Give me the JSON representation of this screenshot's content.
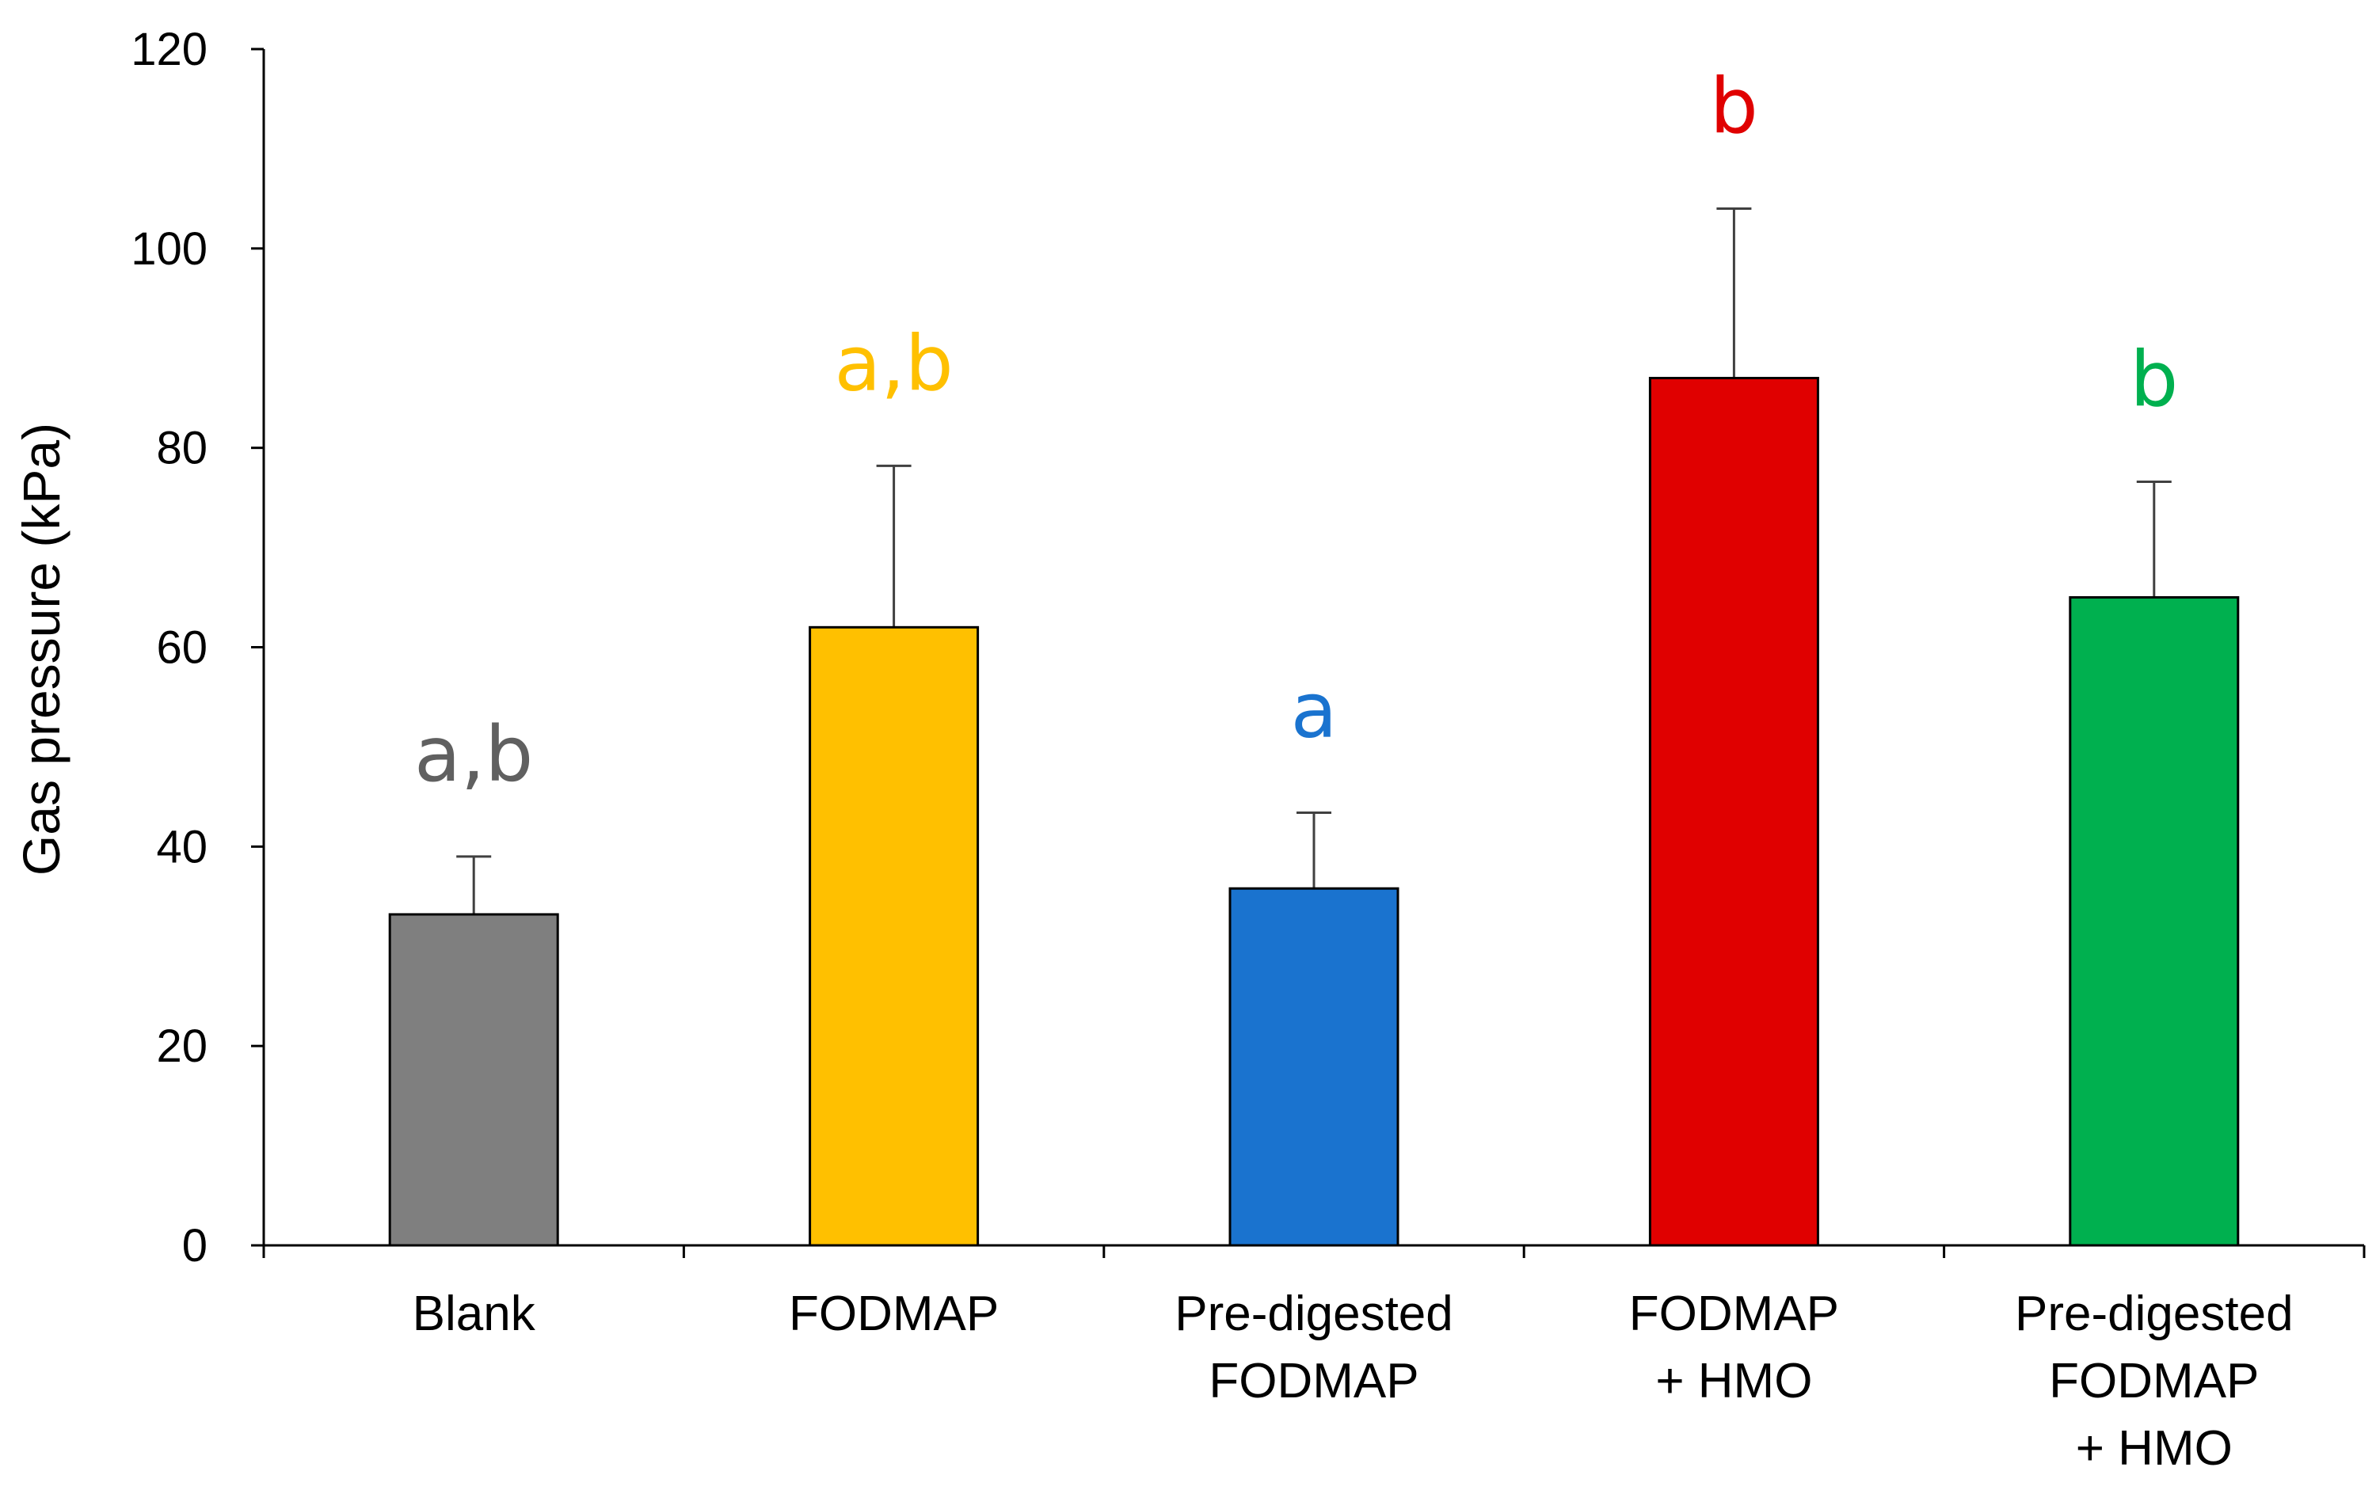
{
  "chart_data": {
    "type": "bar",
    "title": "",
    "xlabel": "",
    "ylabel": "Gas pressure (kPa)",
    "ylim": [
      0,
      120
    ],
    "yticks": [
      "0",
      "20",
      "40",
      "60",
      "80",
      "100",
      "120"
    ],
    "ytick_values": [
      0,
      20,
      40,
      60,
      80,
      100,
      120
    ],
    "grid": false,
    "legend": "none",
    "categories": [
      [
        "Blank"
      ],
      [
        "FODMAP"
      ],
      [
        "Pre-digested",
        "FODMAP"
      ],
      [
        "FODMAP",
        "+ HMO"
      ],
      [
        "Pre-digested",
        "FODMAP",
        "+ HMO"
      ]
    ],
    "values": [
      33.2,
      62,
      35.8,
      87,
      65
    ],
    "error_upper": [
      39,
      78.2,
      43.4,
      104,
      76.6
    ],
    "significance": [
      "a,b",
      "a,b",
      "a",
      "b",
      "b"
    ],
    "colors": [
      "#7f7f7f",
      "#ffc000",
      "#1a73cf",
      "#e00000",
      "#00b04f"
    ],
    "significance_colors": [
      "#606060",
      "#ffc000",
      "#1a73cf",
      "#e00000",
      "#00b04f"
    ]
  }
}
